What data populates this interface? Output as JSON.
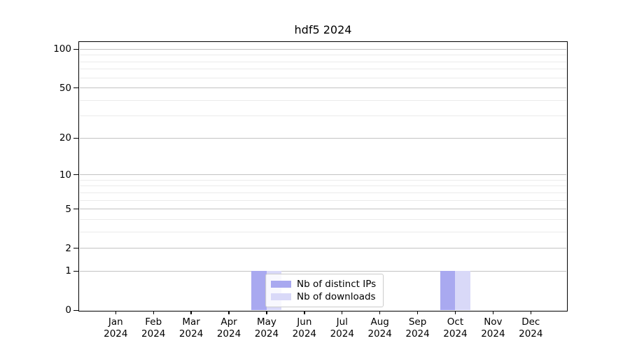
{
  "chart_data": {
    "type": "bar",
    "title": "hdf5 2024",
    "categories": [
      "Jan",
      "Feb",
      "Mar",
      "Apr",
      "May",
      "Jun",
      "Jul",
      "Aug",
      "Sep",
      "Oct",
      "Nov",
      "Dec"
    ],
    "year_label": "2024",
    "series": [
      {
        "name": "Nb of distinct IPs",
        "color": "#a9a9f0",
        "values": [
          0,
          0,
          0,
          0,
          1,
          0,
          0,
          0,
          0,
          1,
          0,
          0
        ]
      },
      {
        "name": "Nb of downloads",
        "color": "#d9d9f8",
        "values": [
          0,
          0,
          0,
          0,
          1,
          0,
          0,
          0,
          0,
          1,
          0,
          0
        ]
      }
    ],
    "yscale": "log1p",
    "yticks": [
      0,
      1,
      2,
      5,
      10,
      20,
      50,
      100
    ],
    "yticks_minor": [
      3,
      4,
      6,
      7,
      8,
      9,
      30,
      40,
      60,
      70,
      80,
      90
    ],
    "ylim": [
      0,
      114
    ],
    "grid": "both",
    "legend_position": "lower-center-inside"
  },
  "colors": {
    "grid_major": "#c3c3c3",
    "grid_minor": "#ebebeb",
    "spine": "#000000",
    "background": "#ffffff"
  }
}
